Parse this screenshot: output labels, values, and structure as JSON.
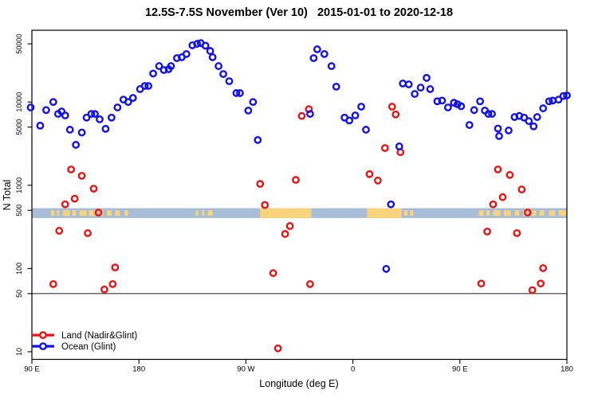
{
  "title": "12.5S-7.5S November (Ver 10)   2015-01-01 to 2020-12-18",
  "chart_data": {
    "type": "scatter",
    "title": "12.5S-7.5S November (Ver 10)   2015-01-01 to 2020-12-18",
    "xlabel": "Longitude (deg E)",
    "ylabel": "N Total",
    "y_scale": "log",
    "ylim": [
      8.1,
      72800
    ],
    "y_ticks": [
      10,
      50,
      100,
      500,
      1000,
      5000,
      10000,
      50000
    ],
    "xlim": [
      0,
      450
    ],
    "x_ticks": [
      {
        "pos": 0,
        "label": "90 E"
      },
      {
        "pos": 90,
        "label": "180"
      },
      {
        "pos": 180,
        "label": "90 W"
      },
      {
        "pos": 270,
        "label": "0"
      },
      {
        "pos": 360,
        "label": "90 E"
      },
      {
        "pos": 450,
        "label": "180"
      }
    ],
    "axis_note": "x axis spans 450 deg of longitude: 90E to 180 to 90W to 0 to 90E to 180",
    "reference_line_y": 50,
    "frame_color": "#000000",
    "reference_line_color": "#3a3a3a",
    "map_band": {
      "value_range": [
        404,
        531
      ],
      "ocean_color": "#A8BED8",
      "land_color": "#FAD37D",
      "land_solid_deg": [
        [
          192,
          235
        ],
        [
          282,
          311
        ]
      ],
      "land_sparse_deg": [
        [
          16,
          19
        ],
        [
          21,
          23
        ],
        [
          26,
          32
        ],
        [
          34,
          37
        ],
        [
          40,
          46
        ],
        [
          48,
          53
        ],
        [
          56,
          60
        ],
        [
          63,
          67
        ],
        [
          70,
          74
        ],
        [
          78,
          81
        ],
        [
          138,
          140
        ],
        [
          143,
          145
        ],
        [
          148,
          152
        ],
        [
          313,
          316
        ],
        [
          318,
          321
        ],
        [
          376,
          380
        ],
        [
          382,
          385
        ],
        [
          388,
          394
        ],
        [
          397,
          403
        ],
        [
          406,
          410
        ],
        [
          413,
          417
        ],
        [
          420,
          424
        ],
        [
          427,
          431
        ],
        [
          435,
          440
        ],
        [
          443,
          450
        ]
      ]
    },
    "series": [
      {
        "name": "Land (Nadir&Glint)",
        "color": "#EE1111",
        "points": [
          [
            18,
            65
          ],
          [
            23,
            284
          ],
          [
            28,
            590
          ],
          [
            33,
            1550
          ],
          [
            36,
            690
          ],
          [
            42,
            1300
          ],
          [
            47,
            266
          ],
          [
            52,
            910
          ],
          [
            56,
            470
          ],
          [
            61,
            56
          ],
          [
            68,
            65
          ],
          [
            70,
            103
          ],
          [
            192,
            1040
          ],
          [
            196,
            580
          ],
          [
            203,
            88
          ],
          [
            207,
            11
          ],
          [
            213,
            260
          ],
          [
            217,
            324
          ],
          [
            222,
            1160
          ],
          [
            227,
            6800
          ],
          [
            233,
            8200
          ],
          [
            234,
            65
          ],
          [
            284,
            1360
          ],
          [
            291,
            1140
          ],
          [
            297,
            2800
          ],
          [
            303,
            8800
          ],
          [
            306,
            7100
          ],
          [
            310,
            2500
          ],
          [
            378,
            66
          ],
          [
            383,
            278
          ],
          [
            388,
            590
          ],
          [
            392,
            1550
          ],
          [
            396,
            720
          ],
          [
            402,
            1330
          ],
          [
            408,
            266
          ],
          [
            412,
            890
          ],
          [
            417,
            470
          ],
          [
            421,
            55
          ],
          [
            428,
            66
          ],
          [
            430,
            101
          ]
        ]
      },
      {
        "name": "Ocean (Glint)",
        "color": "#1111EE",
        "points": [
          [
            -1,
            8600
          ],
          [
            7,
            5200
          ],
          [
            12,
            8000
          ],
          [
            18,
            10000
          ],
          [
            22,
            7200
          ],
          [
            25,
            7700
          ],
          [
            28,
            6900
          ],
          [
            32,
            4650
          ],
          [
            37,
            3060
          ],
          [
            42,
            4300
          ],
          [
            46,
            6500
          ],
          [
            50,
            7200
          ],
          [
            53,
            7200
          ],
          [
            57,
            6200
          ],
          [
            62,
            4760
          ],
          [
            67,
            6500
          ],
          [
            72,
            8600
          ],
          [
            77,
            10700
          ],
          [
            81,
            10000
          ],
          [
            85,
            11200
          ],
          [
            91,
            14300
          ],
          [
            95,
            15600
          ],
          [
            98,
            15600
          ],
          [
            102,
            22000
          ],
          [
            107,
            27000
          ],
          [
            111,
            24200
          ],
          [
            115,
            24800
          ],
          [
            117,
            27000
          ],
          [
            122,
            33700
          ],
          [
            126,
            34500
          ],
          [
            130,
            37700
          ],
          [
            135,
            48000
          ],
          [
            139,
            50000
          ],
          [
            142,
            51000
          ],
          [
            146,
            47500
          ],
          [
            150,
            41000
          ],
          [
            152,
            34500
          ],
          [
            157,
            27000
          ],
          [
            161,
            21700
          ],
          [
            166,
            17800
          ],
          [
            172,
            12800
          ],
          [
            175,
            12800
          ],
          [
            182,
            7900
          ],
          [
            186,
            10000
          ],
          [
            190,
            3500
          ],
          [
            234,
            7200
          ],
          [
            237,
            33700
          ],
          [
            240,
            43000
          ],
          [
            246,
            37700
          ],
          [
            252,
            27000
          ],
          [
            256,
            15300
          ],
          [
            263,
            6500
          ],
          [
            267,
            6000
          ],
          [
            272,
            6900
          ],
          [
            277,
            8800
          ],
          [
            281,
            4650
          ],
          [
            298,
            99
          ],
          [
            302,
            590
          ],
          [
            309,
            2930
          ],
          [
            312,
            16700
          ],
          [
            317,
            16300
          ],
          [
            322,
            12500
          ],
          [
            327,
            14900
          ],
          [
            332,
            19500
          ],
          [
            335,
            14300
          ],
          [
            341,
            10200
          ],
          [
            345,
            10400
          ],
          [
            350,
            8600
          ],
          [
            355,
            9800
          ],
          [
            358,
            9400
          ],
          [
            361,
            8900
          ],
          [
            368,
            5300
          ],
          [
            372,
            8000
          ],
          [
            377,
            10200
          ],
          [
            381,
            7900
          ],
          [
            384,
            7200
          ],
          [
            387,
            7200
          ],
          [
            392,
            4800
          ],
          [
            393,
            3900
          ],
          [
            401,
            4550
          ],
          [
            406,
            6600
          ],
          [
            410,
            6800
          ],
          [
            414,
            6500
          ],
          [
            418,
            5900
          ],
          [
            422,
            5100
          ],
          [
            425,
            6600
          ],
          [
            430,
            8400
          ],
          [
            435,
            10200
          ],
          [
            438,
            10400
          ],
          [
            443,
            10700
          ],
          [
            447,
            11800
          ],
          [
            450,
            12000
          ]
        ]
      }
    ],
    "legend_position": "bottom-left",
    "grid": false
  }
}
